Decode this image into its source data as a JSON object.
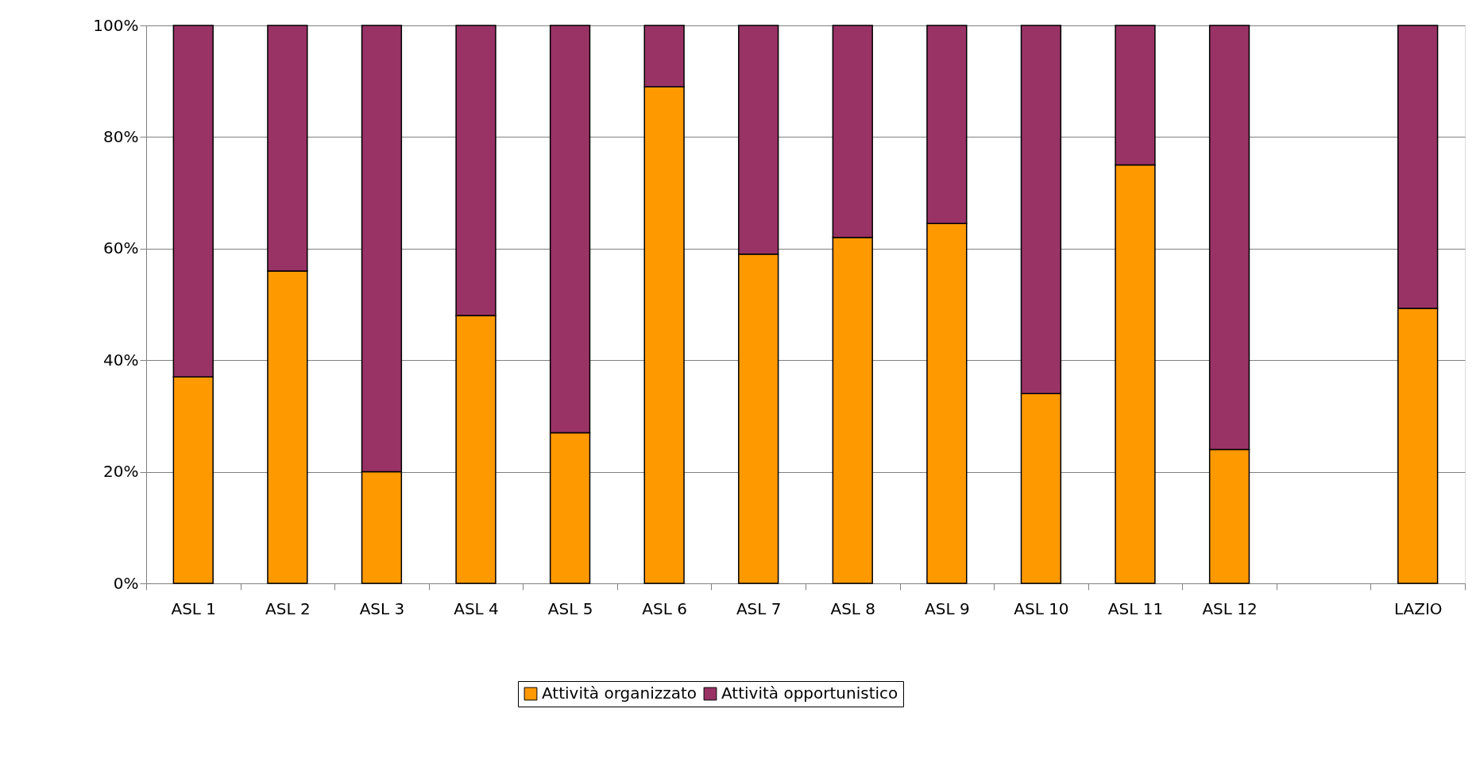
{
  "chart_data": {
    "type": "bar",
    "stacked": true,
    "categories": [
      "ASL 1",
      "ASL 2",
      "ASL 3",
      "ASL 4",
      "ASL 5",
      "ASL 6",
      "ASL 7",
      "ASL 8",
      "ASL 9",
      "ASL 10",
      "ASL 11",
      "ASL 12",
      null,
      "LAZIO"
    ],
    "series": [
      {
        "name": "Attività organizzato",
        "color": "#ff9900",
        "values": [
          37,
          56,
          20,
          48,
          27,
          89,
          59,
          62,
          64.5,
          34,
          75,
          24,
          null,
          49.3
        ]
      },
      {
        "name": "Attività opportunistico",
        "color": "#993366",
        "values": [
          63,
          44,
          80,
          52,
          73,
          11,
          41,
          38,
          35.5,
          66,
          25,
          76,
          null,
          50.7
        ]
      }
    ],
    "ylim": [
      0,
      100
    ],
    "yticks": [
      {
        "value": 0,
        "label": "0%"
      },
      {
        "value": 20,
        "label": "20%"
      },
      {
        "value": 40,
        "label": "40%"
      },
      {
        "value": 60,
        "label": "60%"
      },
      {
        "value": 80,
        "label": "80%"
      },
      {
        "value": 100,
        "label": "100%"
      }
    ],
    "grid": "y",
    "legend": "bottom"
  }
}
